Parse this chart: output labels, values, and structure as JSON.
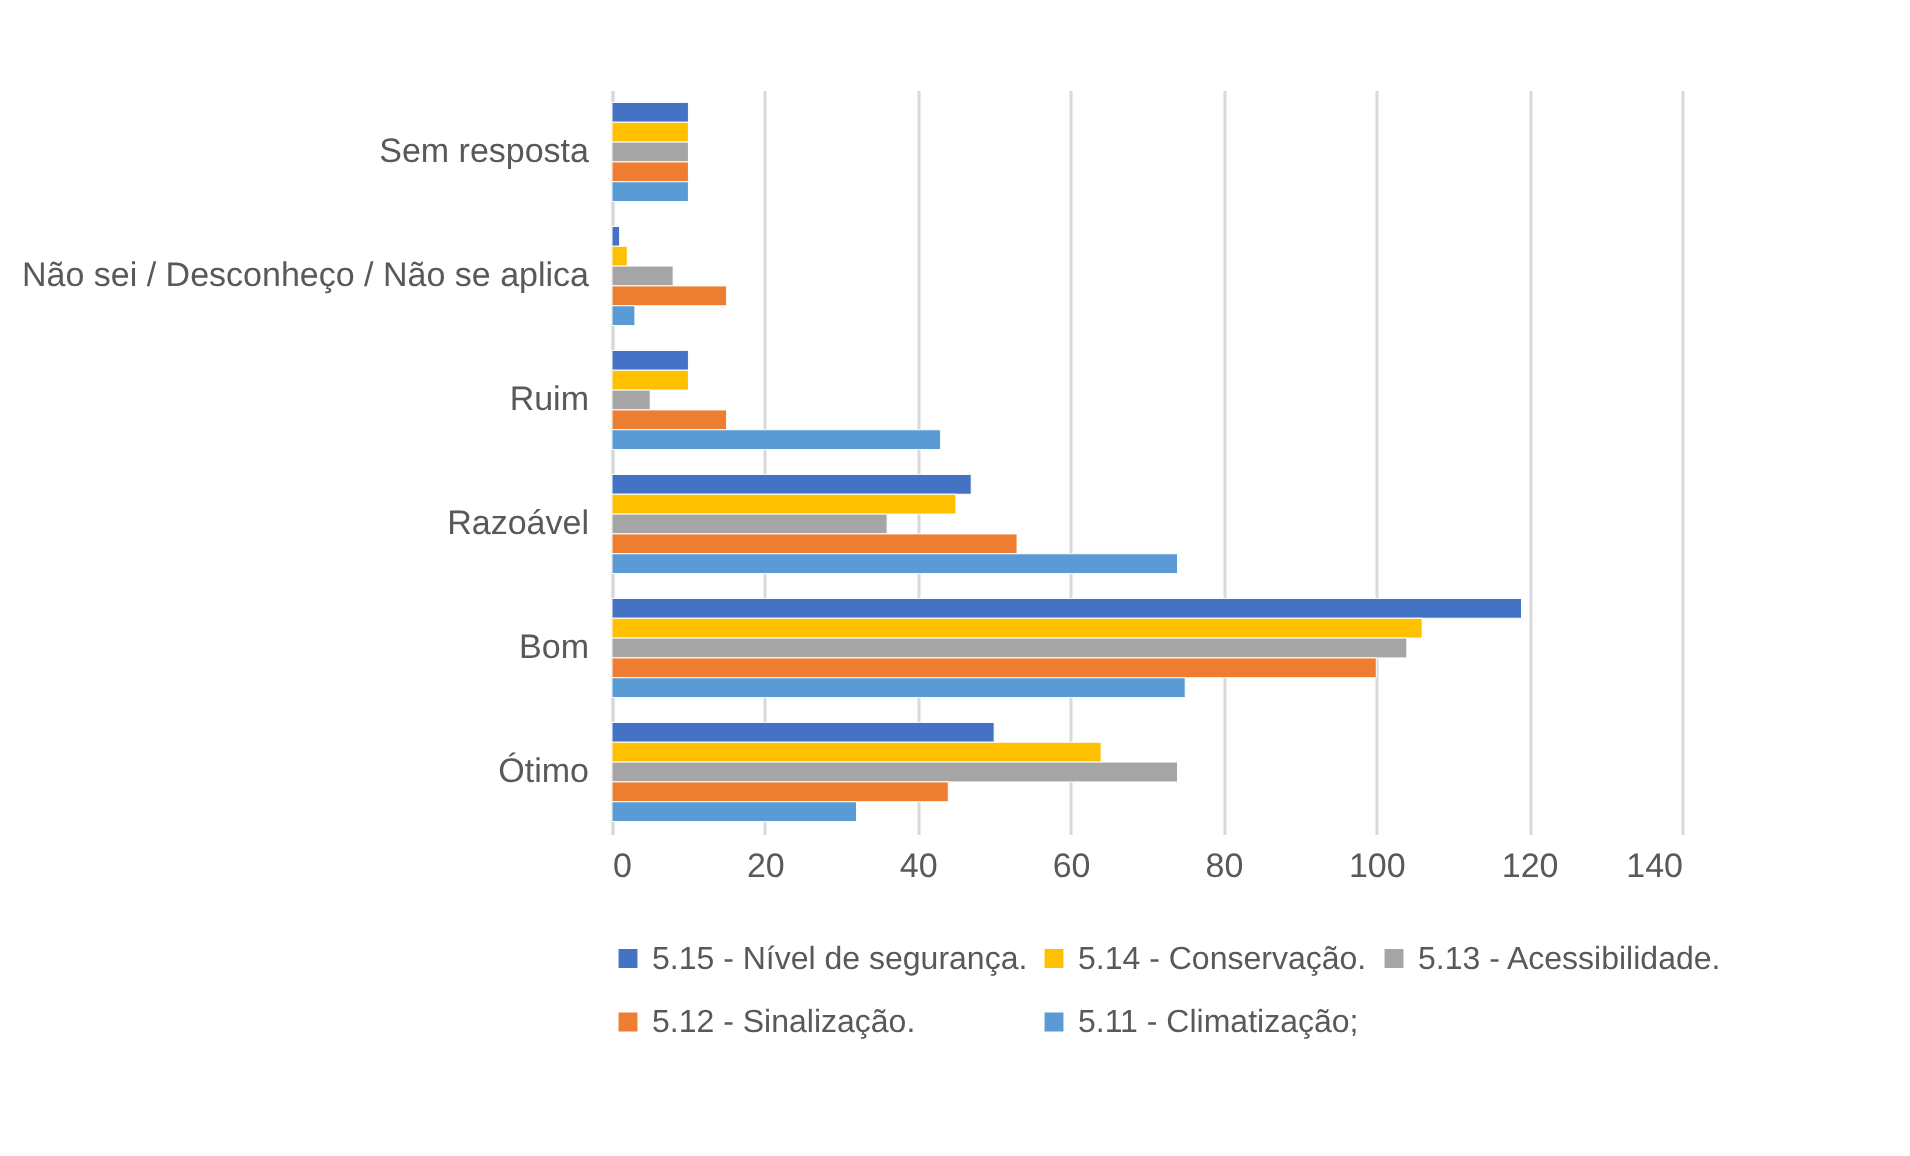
{
  "chart_data": {
    "type": "bar",
    "orientation": "horizontal",
    "categories": [
      "Sem resposta",
      "Não sei / Desconheço / Não se aplica",
      "Ruim",
      "Razoável",
      "Bom",
      "Ótimo"
    ],
    "series": [
      {
        "name": "5.15 - Nível de segurança.",
        "color": "#4472c4",
        "values": [
          10,
          1,
          10,
          47,
          119,
          50
        ]
      },
      {
        "name": "5.14 - Conservação.",
        "color": "#ffc000",
        "values": [
          10,
          2,
          10,
          45,
          106,
          64
        ]
      },
      {
        "name": "5.13 - Acessibilidade.",
        "color": "#a5a5a5",
        "values": [
          10,
          8,
          5,
          36,
          104,
          74
        ]
      },
      {
        "name": "5.12 - Sinalização.",
        "color": "#ed7d31",
        "values": [
          10,
          15,
          15,
          53,
          100,
          44
        ]
      },
      {
        "name": "5.11 - Climatização;",
        "color": "#5b9bd5",
        "values": [
          10,
          3,
          43,
          74,
          75,
          32
        ]
      }
    ],
    "xlim": [
      0,
      140
    ],
    "xticks": [
      0,
      20,
      40,
      60,
      80,
      100,
      120,
      140
    ],
    "grid": "x",
    "legend": "bottom"
  }
}
